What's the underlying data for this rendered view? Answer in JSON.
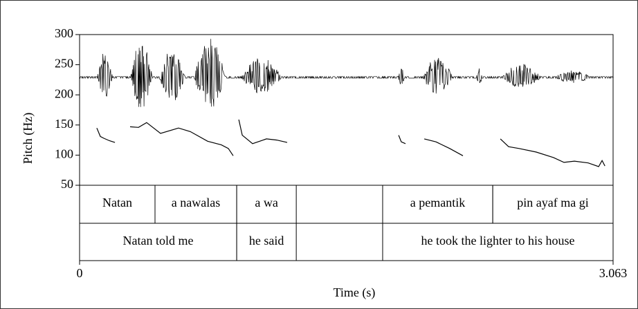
{
  "chart_data": {
    "type": "line",
    "ylabel": "Pitch (Hz)",
    "xlabel": "Time (s)",
    "xlim": [
      0,
      3.063
    ],
    "xticks": [
      0,
      3.063
    ],
    "ylim": [
      50,
      300
    ],
    "yticks": [
      50,
      100,
      150,
      200,
      250,
      300
    ],
    "color": "#000000",
    "x": [
      0.099,
      0.119,
      0.139,
      0.171,
      0.203,
      null,
      0.29,
      0.338,
      0.385,
      0.465,
      0.568,
      0.636,
      0.735,
      0.814,
      0.854,
      0.882,
      null,
      0.914,
      0.934,
      0.993,
      1.073,
      1.132,
      1.192,
      null,
      1.832,
      1.847,
      1.871,
      null,
      1.979,
      2.046,
      2.125,
      2.201,
      null,
      2.416,
      2.463,
      2.523,
      2.622,
      2.721,
      2.781,
      2.841,
      2.92,
      2.98,
      3.0,
      3.016
    ],
    "values": [
      145,
      131,
      128,
      124,
      121,
      null,
      147,
      146,
      154,
      136,
      145,
      139,
      123,
      117,
      111,
      99,
      null,
      159,
      133,
      119,
      127,
      125,
      121,
      null,
      133,
      122,
      119,
      null,
      127,
      122,
      111,
      99,
      null,
      127,
      114,
      111,
      105,
      96,
      88,
      90,
      87,
      81,
      91,
      82
    ],
    "tiers": [
      {
        "intervals": [
          {
            "start": 0,
            "end": 0.433,
            "text": "Natan"
          },
          {
            "start": 0.433,
            "end": 0.902,
            "text": "a nawalas"
          },
          {
            "start": 0.902,
            "end": 1.244,
            "text": "a wa"
          },
          {
            "start": 1.74,
            "end": 2.372,
            "text": "a pemantik"
          },
          {
            "start": 2.372,
            "end": 3.063,
            "text": "pin ayaf ma gi"
          }
        ]
      },
      {
        "intervals": [
          {
            "start": 0,
            "end": 0.902,
            "text": "Natan told me"
          },
          {
            "start": 0.902,
            "end": 1.244,
            "text": "he said"
          },
          {
            "start": 1.74,
            "end": 3.063,
            "text": "he took the lighter to his house"
          }
        ]
      }
    ]
  }
}
